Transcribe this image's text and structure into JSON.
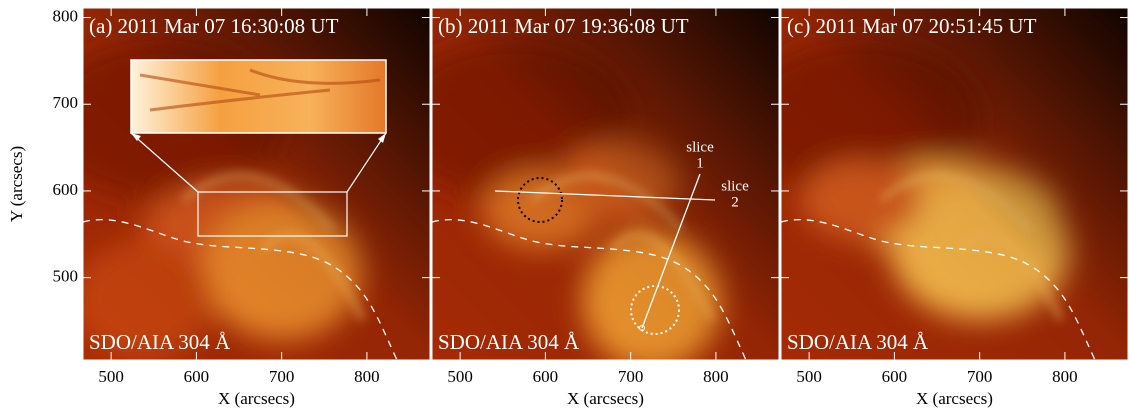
{
  "figure": {
    "y_label": "Y (arcsecs)",
    "ylim": [
      405,
      811
    ],
    "yticks": [
      500,
      600,
      700,
      800
    ],
    "panels": [
      {
        "title": "(a) 2011 Mar 07 16:30:08 UT",
        "instrument": "SDO/AIA 304 Å",
        "x_label": "X (arcsecs)",
        "xlim": [
          467,
          874
        ],
        "xticks": [
          500,
          600,
          700,
          800
        ]
      },
      {
        "title": "(b) 2011 Mar 07 19:36:08 UT",
        "instrument": "SDO/AIA 304 Å",
        "x_label": "X (arcsecs)",
        "xlim": [
          467,
          874
        ],
        "xticks": [
          500,
          600,
          700,
          800
        ]
      },
      {
        "title": "(c) 2011 Mar 07 20:51:45 UT",
        "instrument": "SDO/AIA 304 Å",
        "x_label": "X (arcsecs)",
        "xlim": [
          467,
          874
        ],
        "xticks": [
          500,
          600,
          700,
          800
        ]
      }
    ],
    "slices": [
      {
        "label": "slice",
        "number": "1"
      },
      {
        "label": "slice",
        "number": "2"
      }
    ]
  }
}
